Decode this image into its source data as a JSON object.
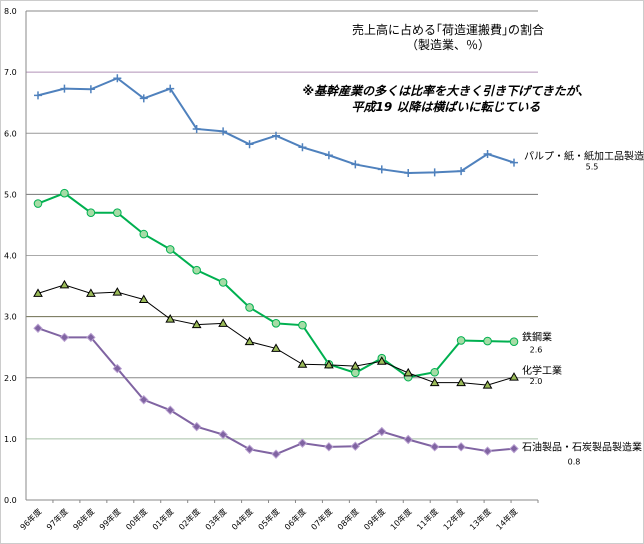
{
  "chart_data": {
    "type": "line",
    "title": "売上高に占める｢荷造運搬費｣の割合",
    "subtitle": "（製造業、％）",
    "annotation": [
      "※基幹産業の多くは比率を大きく引き下げてきたが、",
      "平成19 以降は横ばいに転じている"
    ],
    "xlabel": "",
    "ylabel": "",
    "ylim": [
      0,
      8
    ],
    "yticks": [
      "0.0",
      "1.0",
      "2.0",
      "3.0",
      "4.0",
      "5.0",
      "6.0",
      "7.0",
      "8.0"
    ],
    "categories": [
      "96年度",
      "97年度",
      "98年度",
      "99年度",
      "00年度",
      "01年度",
      "02年度",
      "03年度",
      "04年度",
      "05年度",
      "06年度",
      "07年度",
      "08年度",
      "09年度",
      "10年度",
      "11年度",
      "12年度",
      "13年度",
      "14年度"
    ],
    "grid": true,
    "series": [
      {
        "name": "パルプ・紙・紙加工品製造業",
        "end_label": "5.5",
        "color": "#4f81bd",
        "marker": "cross",
        "values": [
          6.62,
          6.73,
          6.72,
          6.9,
          6.57,
          6.73,
          6.07,
          6.03,
          5.82,
          5.96,
          5.77,
          5.64,
          5.49,
          5.41,
          5.35,
          5.36,
          5.38,
          5.66,
          5.52
        ]
      },
      {
        "name": "鉄鋼業",
        "end_label": "2.6",
        "color": "#00b050",
        "marker": "circle",
        "values": [
          4.85,
          5.02,
          4.7,
          4.7,
          4.35,
          4.1,
          3.76,
          3.56,
          3.15,
          2.89,
          2.86,
          2.22,
          2.08,
          2.32,
          2.01,
          2.09,
          2.61,
          2.6,
          2.59
        ]
      },
      {
        "name": "化学工業",
        "end_label": "2.0",
        "color": "#000000",
        "marker": "triangle",
        "values": [
          3.38,
          3.52,
          3.38,
          3.4,
          3.28,
          2.96,
          2.87,
          2.89,
          2.59,
          2.48,
          2.22,
          2.21,
          2.19,
          2.27,
          2.08,
          1.92,
          1.92,
          1.88,
          2.01
        ]
      },
      {
        "name": "石油製品・石炭製品製造業",
        "end_label": "0.8",
        "color": "#8064a2",
        "marker": "diamond",
        "values": [
          2.81,
          2.66,
          2.66,
          2.15,
          1.64,
          1.47,
          1.2,
          1.07,
          0.83,
          0.75,
          0.93,
          0.87,
          0.88,
          1.12,
          0.99,
          0.87,
          0.87,
          0.8,
          0.84
        ]
      }
    ]
  }
}
